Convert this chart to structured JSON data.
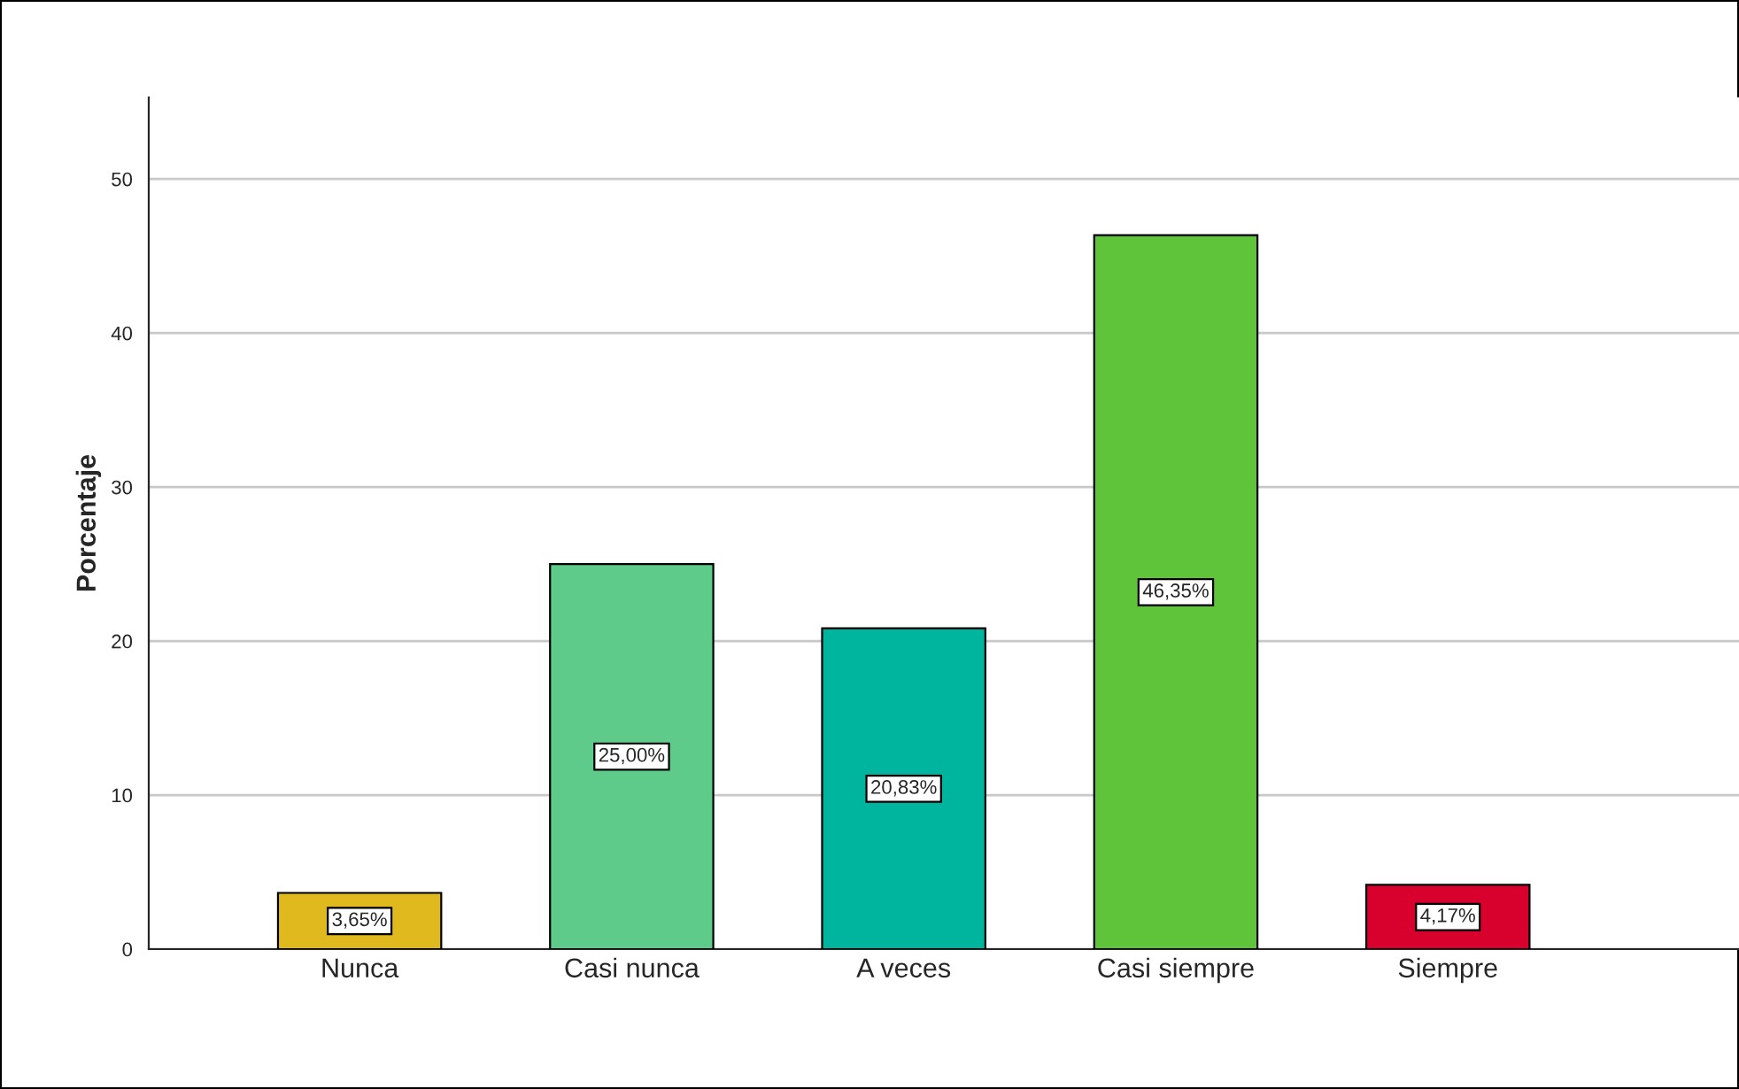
{
  "chart_data": {
    "type": "bar",
    "ylabel": "Porcentaje",
    "categories": [
      "Nunca",
      "Casi nunca",
      "A veces",
      "Casi siempre",
      "Siempre"
    ],
    "values": [
      3.65,
      25.0,
      20.83,
      46.35,
      4.17
    ],
    "colors": [
      "#dfb91e",
      "#5ecb8b",
      "#00b59e",
      "#60c43a",
      "#d8002c"
    ],
    "value_labels": [
      "3,65%",
      "25,00%",
      "20,83%",
      "46,35%",
      "4,17%"
    ],
    "ylim": [
      0,
      55.3
    ],
    "yticks": [
      0,
      10,
      20,
      30,
      40,
      50
    ],
    "grid": "y"
  }
}
